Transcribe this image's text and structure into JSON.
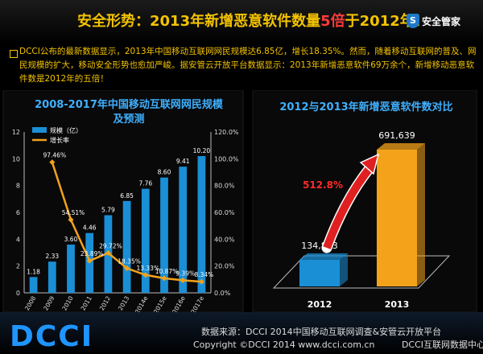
{
  "header": {
    "title_prefix": "安全形势：2013年新增恶意软件数量",
    "title_highlight": "5倍",
    "title_suffix": "于2012年！",
    "brand": "安全管家",
    "brand_icon": "S"
  },
  "intro": {
    "text": "DCCI公布的最新数据显示，2013年中国移动互联网网民规模达6.85亿，增长18.35%。然而，随着移动互联网的普及、网民规模的扩大，移动安全形势也愈加严峻。据安管云开放平台数据显示：2013年新增恶意软件69万余个，新增移动恶意软件数是2012年的五倍！"
  },
  "chart_data": [
    {
      "type": "bar",
      "title": "2008-2017年中国移动互联网网民规模及预测",
      "categories": [
        "2008",
        "2009",
        "2010",
        "2011",
        "2012",
        "2013",
        "2014e",
        "2015e",
        "2016e",
        "2017e"
      ],
      "series": [
        {
          "name": "规模（亿）",
          "type": "bar",
          "axis": "left",
          "color": "#1a8fd6",
          "values": [
            1.18,
            2.33,
            3.6,
            4.46,
            5.79,
            6.85,
            7.76,
            8.6,
            9.41,
            10.2
          ],
          "labels": [
            "1.18",
            "2.33",
            "3.60",
            "4.46",
            "5.79",
            "6.85",
            "7.76",
            "8.60",
            "9.41",
            "10.20"
          ]
        },
        {
          "name": "增长率",
          "type": "line",
          "axis": "right",
          "color": "#f3a21a",
          "values": [
            null,
            97.46,
            54.51,
            23.89,
            29.72,
            18.35,
            13.33,
            10.87,
            9.39,
            8.34
          ],
          "labels": [
            "",
            "97.46%",
            "54.51%",
            "23.89%",
            "29.72%",
            "18.35%",
            "13.33%",
            "10.87%",
            "9.39%",
            "8.34%"
          ]
        }
      ],
      "ylim": [
        0,
        12
      ],
      "yticks": [
        "0",
        "2",
        "4",
        "6",
        "8",
        "10",
        "12"
      ],
      "y2lim": [
        0,
        120
      ],
      "y2ticks": [
        "0.0%",
        "20.0%",
        "40.0%",
        "60.0%",
        "80.0%",
        "100.0%",
        "120.0%"
      ],
      "legend_position": "top-left",
      "grid": false
    },
    {
      "type": "bar",
      "title": "2012与2013年新增恶意软件数对比",
      "categories": [
        "2012",
        "2013"
      ],
      "values": [
        134883,
        691639
      ],
      "labels": [
        "134,883",
        "691,639"
      ],
      "colors": [
        "#1a8fd6",
        "#f3a21a"
      ],
      "annotation": "512.8%",
      "grid": false
    }
  ],
  "footer": {
    "logo": "DCCI",
    "source": "数据来源：DCCI 2014中国移动互联网调查&安管云开放平台",
    "copyright": "Copyright ©DCCI 2014 www.dcci.com.cn",
    "center": "DCCI互联网数据中心"
  }
}
